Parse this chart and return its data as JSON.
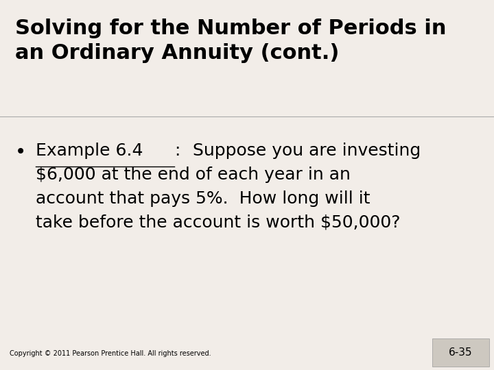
{
  "title_line1": "Solving for the Number of Periods in",
  "title_line2": "an Ordinary Annuity (cont.)",
  "bullet_label": "Example 6.4",
  "bullet_colon": ":",
  "bullet_rest_line1": "  Suppose you are investing",
  "bullet_rest_line2": "$6,000 at the end of each year in an",
  "bullet_rest_line3": "account that pays 5%.  How long will it",
  "bullet_rest_line4": "take before the account is worth $50,000?",
  "copyright": "Copyright © 2011 Pearson Prentice Hall. All rights reserved.",
  "page_number": "6-35",
  "bg_color": "#f2ede8",
  "text_color": "#000000",
  "title_fontsize": 22,
  "body_fontsize": 18,
  "copyright_fontsize": 7,
  "page_number_fontsize": 11,
  "page_box_color": "#cdc8c0"
}
